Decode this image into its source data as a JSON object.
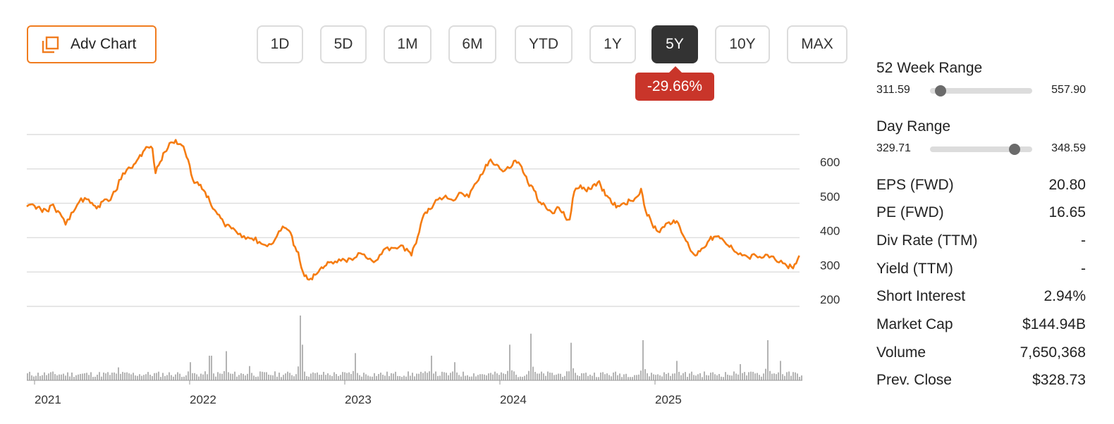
{
  "toolbar": {
    "adv_chart_label": "Adv Chart",
    "ranges": [
      "1D",
      "5D",
      "1M",
      "6M",
      "YTD",
      "1Y",
      "5Y",
      "10Y",
      "MAX"
    ],
    "active_range": "5Y",
    "change_badge": "-29.66%"
  },
  "colors": {
    "accent": "#f07c1f",
    "price_line": "#f57c12",
    "negative": "#c9352a",
    "active_tab": "#333333",
    "volume_bars": "#b3b3b3",
    "grid": "#dddddd"
  },
  "chart_data": {
    "type": "line",
    "y_ticks": [
      "600",
      "500",
      "400",
      "300",
      "200"
    ],
    "ylim": [
      185,
      700
    ],
    "x_labels": [
      "2021",
      "2022",
      "2023",
      "2024",
      "2025"
    ],
    "xlim": [
      2020.95,
      2025.95
    ],
    "grid": true,
    "series": [
      {
        "values": [
          [
            2020.95,
            478
          ],
          [
            2021.0,
            480
          ],
          [
            2021.04,
            470
          ],
          [
            2021.08,
            465
          ],
          [
            2021.11,
            482
          ],
          [
            2021.15,
            465
          ],
          [
            2021.2,
            425
          ],
          [
            2021.25,
            462
          ],
          [
            2021.3,
            502
          ],
          [
            2021.36,
            488
          ],
          [
            2021.4,
            472
          ],
          [
            2021.44,
            493
          ],
          [
            2021.49,
            497
          ],
          [
            2021.52,
            522
          ],
          [
            2021.57,
            575
          ],
          [
            2021.62,
            590
          ],
          [
            2021.66,
            612
          ],
          [
            2021.7,
            638
          ],
          [
            2021.73,
            651
          ],
          [
            2021.76,
            647
          ],
          [
            2021.78,
            575
          ],
          [
            2021.8,
            598
          ],
          [
            2021.84,
            637
          ],
          [
            2021.88,
            665
          ],
          [
            2021.91,
            672
          ],
          [
            2021.94,
            660
          ],
          [
            2021.97,
            638
          ],
          [
            2022.0,
            598
          ],
          [
            2022.02,
            557
          ],
          [
            2022.06,
            540
          ],
          [
            2022.1,
            520
          ],
          [
            2022.14,
            480
          ],
          [
            2022.18,
            455
          ],
          [
            2022.22,
            430
          ],
          [
            2022.26,
            420
          ],
          [
            2022.3,
            405
          ],
          [
            2022.35,
            392
          ],
          [
            2022.4,
            385
          ],
          [
            2022.45,
            375
          ],
          [
            2022.5,
            362
          ],
          [
            2022.55,
            382
          ],
          [
            2022.6,
            420
          ],
          [
            2022.64,
            408
          ],
          [
            2022.68,
            360
          ],
          [
            2022.7,
            345
          ],
          [
            2022.72,
            300
          ],
          [
            2022.74,
            275
          ],
          [
            2022.78,
            268
          ],
          [
            2022.82,
            282
          ],
          [
            2022.86,
            298
          ],
          [
            2022.9,
            315
          ],
          [
            2022.95,
            315
          ],
          [
            2023.0,
            322
          ],
          [
            2023.05,
            322
          ],
          [
            2023.1,
            342
          ],
          [
            2023.15,
            325
          ],
          [
            2023.2,
            320
          ],
          [
            2023.25,
            352
          ],
          [
            2023.3,
            358
          ],
          [
            2023.35,
            360
          ],
          [
            2023.4,
            355
          ],
          [
            2023.43,
            335
          ],
          [
            2023.47,
            390
          ],
          [
            2023.51,
            455
          ],
          [
            2023.55,
            470
          ],
          [
            2023.6,
            498
          ],
          [
            2023.65,
            510
          ],
          [
            2023.7,
            495
          ],
          [
            2023.75,
            518
          ],
          [
            2023.8,
            505
          ],
          [
            2023.85,
            548
          ],
          [
            2023.9,
            585
          ],
          [
            2023.94,
            615
          ],
          [
            2023.98,
            600
          ],
          [
            2024.02,
            580
          ],
          [
            2024.06,
            590
          ],
          [
            2024.1,
            612
          ],
          [
            2024.14,
            594
          ],
          [
            2024.18,
            548
          ],
          [
            2024.22,
            525
          ],
          [
            2024.26,
            490
          ],
          [
            2024.3,
            472
          ],
          [
            2024.34,
            458
          ],
          [
            2024.38,
            475
          ],
          [
            2024.42,
            448
          ],
          [
            2024.45,
            440
          ],
          [
            2024.48,
            522
          ],
          [
            2024.52,
            540
          ],
          [
            2024.56,
            522
          ],
          [
            2024.6,
            540
          ],
          [
            2024.64,
            552
          ],
          [
            2024.68,
            510
          ],
          [
            2024.72,
            488
          ],
          [
            2024.76,
            480
          ],
          [
            2024.8,
            488
          ],
          [
            2024.84,
            495
          ],
          [
            2024.88,
            505
          ],
          [
            2024.91,
            530
          ],
          [
            2024.94,
            465
          ],
          [
            2024.98,
            428
          ],
          [
            2025.02,
            405
          ],
          [
            2025.05,
            418
          ],
          [
            2025.08,
            430
          ],
          [
            2025.12,
            438
          ],
          [
            2025.16,
            418
          ],
          [
            2025.18,
            395
          ],
          [
            2025.22,
            360
          ],
          [
            2025.26,
            335
          ],
          [
            2025.3,
            355
          ],
          [
            2025.34,
            375
          ],
          [
            2025.38,
            390
          ],
          [
            2025.42,
            385
          ],
          [
            2025.46,
            368
          ],
          [
            2025.5,
            355
          ],
          [
            2025.55,
            342
          ],
          [
            2025.6,
            330
          ],
          [
            2025.65,
            335
          ],
          [
            2025.7,
            330
          ],
          [
            2025.75,
            333
          ],
          [
            2025.8,
            315
          ],
          [
            2025.85,
            305
          ],
          [
            2025.88,
            302
          ],
          [
            2025.91,
            312
          ],
          [
            2025.93,
            335
          ]
        ]
      }
    ],
    "volume": {
      "spikes": [
        [
          2021.54,
          0.2
        ],
        [
          2022.0,
          0.28
        ],
        [
          2022.13,
          0.38
        ],
        [
          2022.23,
          0.45
        ],
        [
          2022.38,
          0.22
        ],
        [
          2022.71,
          1.0
        ],
        [
          2022.72,
          0.55
        ],
        [
          2023.06,
          0.42
        ],
        [
          2023.55,
          0.38
        ],
        [
          2023.71,
          0.28
        ],
        [
          2024.06,
          0.55
        ],
        [
          2024.2,
          0.72
        ],
        [
          2024.46,
          0.58
        ],
        [
          2024.92,
          0.62
        ],
        [
          2025.14,
          0.3
        ],
        [
          2025.55,
          0.25
        ],
        [
          2025.72,
          0.62
        ],
        [
          2025.8,
          0.3
        ]
      ]
    }
  },
  "stats": {
    "week52": {
      "title": "52 Week Range",
      "low": "311.59",
      "high": "557.90",
      "position": 0.1
    },
    "day": {
      "title": "Day Range",
      "low": "329.71",
      "high": "348.59",
      "position": 0.83
    },
    "rows": [
      {
        "label": "EPS (FWD)",
        "value": "20.80"
      },
      {
        "label": "PE (FWD)",
        "value": "16.65"
      },
      {
        "label": "Div Rate (TTM)",
        "value": "-"
      },
      {
        "label": "Yield (TTM)",
        "value": "-"
      },
      {
        "label": "Short Interest",
        "value": "2.94%"
      },
      {
        "label": "Market Cap",
        "value": "$144.94B"
      },
      {
        "label": "Volume",
        "value": "7,650,368"
      },
      {
        "label": "Prev. Close",
        "value": "$328.73"
      }
    ]
  }
}
